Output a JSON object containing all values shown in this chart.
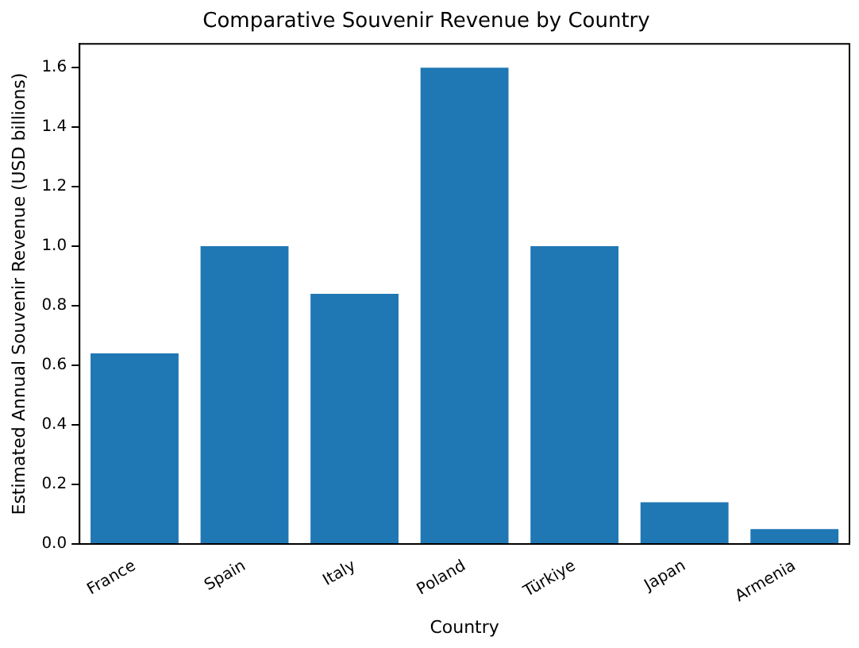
{
  "chart_data": {
    "type": "bar",
    "title": "Comparative Souvenir Revenue by Country",
    "xlabel": "Country",
    "ylabel": "Estimated Annual Souvenir Revenue (USD billions)",
    "categories": [
      "France",
      "Spain",
      "Italy",
      "Poland",
      "Türkiye",
      "Japan",
      "Armenia"
    ],
    "values": [
      0.64,
      1.0,
      0.84,
      1.6,
      1.0,
      0.14,
      0.05
    ],
    "color": "#1f77b4",
    "ylim": [
      0,
      1.68
    ],
    "yticks": [
      {
        "value": 0,
        "label": "0.0"
      },
      {
        "value": 0.2,
        "label": "0.2"
      },
      {
        "value": 0.4,
        "label": "0.4"
      },
      {
        "value": 0.6,
        "label": "0.6"
      },
      {
        "value": 0.8,
        "label": "0.8"
      },
      {
        "value": 1,
        "label": "1.0"
      },
      {
        "value": 1.2,
        "label": "1.2"
      },
      {
        "value": 1.4,
        "label": "1.4"
      },
      {
        "value": 1.6,
        "label": "1.6"
      }
    ],
    "grid": false,
    "legend": false
  }
}
